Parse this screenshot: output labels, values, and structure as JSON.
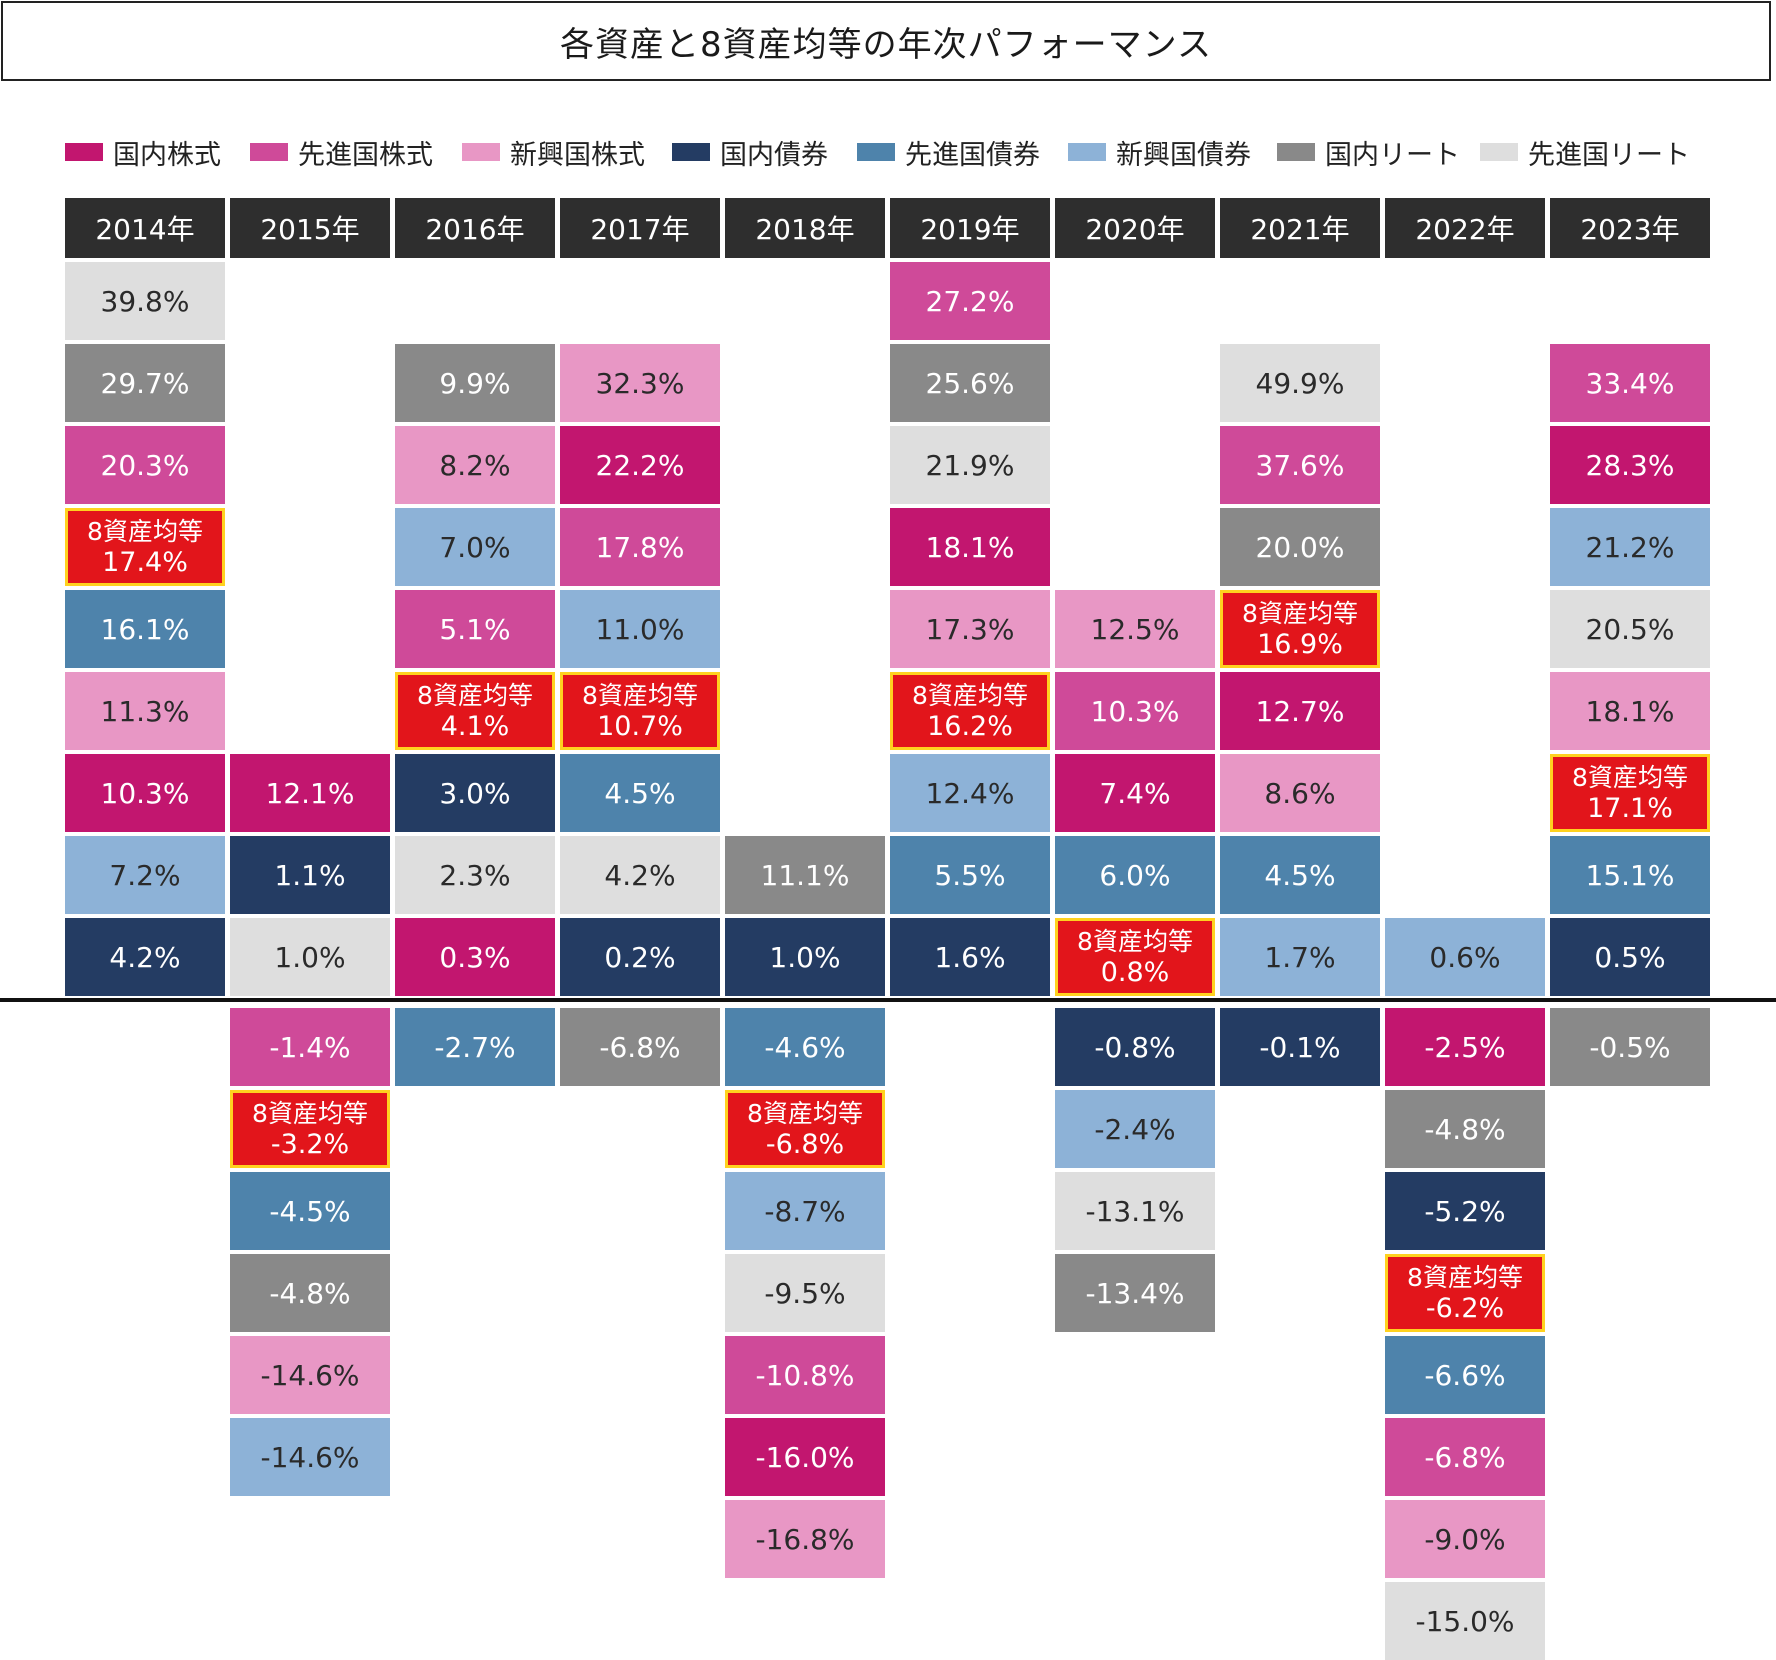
{
  "title": "各資産と8資産均等の年次パフォーマンス",
  "avg_label": "8資産均等",
  "colors": {
    "domestic_stock": "#c2166f",
    "developed_stock": "#cf4a99",
    "emerging_stock": "#e897c5",
    "domestic_bond": "#243c63",
    "developed_bond": "#4e83ab",
    "emerging_bond": "#8db2d7",
    "domestic_reit": "#898989",
    "developed_reit": "#dedede",
    "balanced": "#e2151b"
  },
  "chart_data": {
    "type": "table",
    "legend": [
      {
        "key": "domestic_stock",
        "label": "国内株式"
      },
      {
        "key": "developed_stock",
        "label": "先進国株式"
      },
      {
        "key": "emerging_stock",
        "label": "新興国株式"
      },
      {
        "key": "domestic_bond",
        "label": "国内債券"
      },
      {
        "key": "developed_bond",
        "label": "先進国債券"
      },
      {
        "key": "emerging_bond",
        "label": "新興国債券"
      },
      {
        "key": "domestic_reit",
        "label": "国内リート"
      },
      {
        "key": "developed_reit",
        "label": "先進国リート"
      }
    ],
    "years": [
      {
        "year": "2014年",
        "cells": [
          {
            "asset": "developed_reit",
            "value": "39.8%"
          },
          {
            "asset": "domestic_reit",
            "value": "29.7%"
          },
          {
            "asset": "developed_stock",
            "value": "20.3%"
          },
          {
            "asset": "balanced",
            "value": "17.4%"
          },
          {
            "asset": "developed_bond",
            "value": "16.1%"
          },
          {
            "asset": "emerging_stock",
            "value": "11.3%"
          },
          {
            "asset": "domestic_stock",
            "value": "10.3%"
          },
          {
            "asset": "emerging_bond",
            "value": "7.2%"
          },
          {
            "asset": "domestic_bond",
            "value": "4.2%"
          }
        ]
      },
      {
        "year": "2015年",
        "cells": [
          {
            "asset": "domestic_stock",
            "value": "12.1%"
          },
          {
            "asset": "domestic_bond",
            "value": "1.1%"
          },
          {
            "asset": "developed_reit",
            "value": "1.0%"
          },
          {
            "asset": "developed_stock",
            "value": "-1.4%"
          },
          {
            "asset": "balanced",
            "value": "-3.2%"
          },
          {
            "asset": "developed_bond",
            "value": "-4.5%"
          },
          {
            "asset": "domestic_reit",
            "value": "-4.8%"
          },
          {
            "asset": "emerging_stock",
            "value": "-14.6%"
          },
          {
            "asset": "emerging_bond",
            "value": "-14.6%"
          }
        ]
      },
      {
        "year": "2016年",
        "cells": [
          {
            "asset": "domestic_reit",
            "value": "9.9%"
          },
          {
            "asset": "emerging_stock",
            "value": "8.2%"
          },
          {
            "asset": "emerging_bond",
            "value": "7.0%"
          },
          {
            "asset": "developed_stock",
            "value": "5.1%"
          },
          {
            "asset": "balanced",
            "value": "4.1%"
          },
          {
            "asset": "domestic_bond",
            "value": "3.0%"
          },
          {
            "asset": "developed_reit",
            "value": "2.3%"
          },
          {
            "asset": "domestic_stock",
            "value": "0.3%"
          },
          {
            "asset": "developed_bond",
            "value": "-2.7%"
          }
        ]
      },
      {
        "year": "2017年",
        "cells": [
          {
            "asset": "emerging_stock",
            "value": "32.3%"
          },
          {
            "asset": "domestic_stock",
            "value": "22.2%"
          },
          {
            "asset": "developed_stock",
            "value": "17.8%"
          },
          {
            "asset": "emerging_bond",
            "value": "11.0%"
          },
          {
            "asset": "balanced",
            "value": "10.7%"
          },
          {
            "asset": "developed_bond",
            "value": "4.5%"
          },
          {
            "asset": "developed_reit",
            "value": "4.2%"
          },
          {
            "asset": "domestic_bond",
            "value": "0.2%"
          },
          {
            "asset": "domestic_reit",
            "value": "-6.8%"
          }
        ]
      },
      {
        "year": "2018年",
        "cells": [
          {
            "asset": "domestic_reit",
            "value": "11.1%"
          },
          {
            "asset": "domestic_bond",
            "value": "1.0%"
          },
          {
            "asset": "developed_bond",
            "value": "-4.6%"
          },
          {
            "asset": "balanced",
            "value": "-6.8%"
          },
          {
            "asset": "emerging_bond",
            "value": "-8.7%"
          },
          {
            "asset": "developed_reit",
            "value": "-9.5%"
          },
          {
            "asset": "developed_stock",
            "value": "-10.8%"
          },
          {
            "asset": "domestic_stock",
            "value": "-16.0%"
          },
          {
            "asset": "emerging_stock",
            "value": "-16.8%"
          }
        ]
      },
      {
        "year": "2019年",
        "cells": [
          {
            "asset": "developed_stock",
            "value": "27.2%"
          },
          {
            "asset": "domestic_reit",
            "value": "25.6%"
          },
          {
            "asset": "developed_reit",
            "value": "21.9%"
          },
          {
            "asset": "domestic_stock",
            "value": "18.1%"
          },
          {
            "asset": "emerging_stock",
            "value": "17.3%"
          },
          {
            "asset": "balanced",
            "value": "16.2%"
          },
          {
            "asset": "emerging_bond",
            "value": "12.4%"
          },
          {
            "asset": "developed_bond",
            "value": "5.5%"
          },
          {
            "asset": "domestic_bond",
            "value": "1.6%"
          }
        ]
      },
      {
        "year": "2020年",
        "cells": [
          {
            "asset": "emerging_stock",
            "value": "12.5%"
          },
          {
            "asset": "developed_stock",
            "value": "10.3%"
          },
          {
            "asset": "domestic_stock",
            "value": "7.4%"
          },
          {
            "asset": "developed_bond",
            "value": "6.0%"
          },
          {
            "asset": "balanced",
            "value": "0.8%"
          },
          {
            "asset": "domestic_bond",
            "value": "-0.8%"
          },
          {
            "asset": "emerging_bond",
            "value": "-2.4%"
          },
          {
            "asset": "developed_reit",
            "value": "-13.1%"
          },
          {
            "asset": "domestic_reit",
            "value": "-13.4%"
          }
        ]
      },
      {
        "year": "2021年",
        "cells": [
          {
            "asset": "developed_reit",
            "value": "49.9%"
          },
          {
            "asset": "developed_stock",
            "value": "37.6%"
          },
          {
            "asset": "domestic_reit",
            "value": "20.0%"
          },
          {
            "asset": "balanced",
            "value": "16.9%"
          },
          {
            "asset": "domestic_stock",
            "value": "12.7%"
          },
          {
            "asset": "emerging_stock",
            "value": "8.6%"
          },
          {
            "asset": "developed_bond",
            "value": "4.5%"
          },
          {
            "asset": "emerging_bond",
            "value": "1.7%"
          },
          {
            "asset": "domestic_bond",
            "value": "-0.1%"
          }
        ]
      },
      {
        "year": "2022年",
        "cells": [
          {
            "asset": "emerging_bond",
            "value": "0.6%"
          },
          {
            "asset": "domestic_stock",
            "value": "-2.5%"
          },
          {
            "asset": "domestic_reit",
            "value": "-4.8%"
          },
          {
            "asset": "domestic_bond",
            "value": "-5.2%"
          },
          {
            "asset": "balanced",
            "value": "-6.2%"
          },
          {
            "asset": "developed_bond",
            "value": "-6.6%"
          },
          {
            "asset": "developed_stock",
            "value": "-6.8%"
          },
          {
            "asset": "emerging_stock",
            "value": "-9.0%"
          },
          {
            "asset": "developed_reit",
            "value": "-15.0%"
          }
        ]
      },
      {
        "year": "2023年",
        "cells": [
          {
            "asset": "developed_stock",
            "value": "33.4%"
          },
          {
            "asset": "domestic_stock",
            "value": "28.3%"
          },
          {
            "asset": "emerging_bond",
            "value": "21.2%"
          },
          {
            "asset": "developed_reit",
            "value": "20.5%"
          },
          {
            "asset": "emerging_stock",
            "value": "18.1%"
          },
          {
            "asset": "balanced",
            "value": "17.1%"
          },
          {
            "asset": "developed_bond",
            "value": "15.1%"
          },
          {
            "asset": "domestic_bond",
            "value": "0.5%"
          },
          {
            "asset": "domestic_reit",
            "value": "-0.5%"
          }
        ]
      }
    ]
  }
}
